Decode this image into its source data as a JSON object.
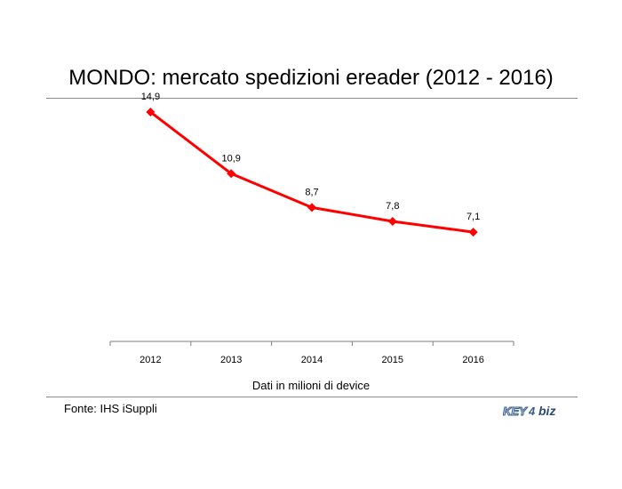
{
  "chart_data": {
    "type": "line",
    "title": "MONDO: mercato spedizioni ereader (2012 - 2016)",
    "xlabel": "Dati in milioni di device",
    "ylabel": "",
    "categories": [
      "2012",
      "2013",
      "2014",
      "2015",
      "2016"
    ],
    "series": [
      {
        "values": [
          14.9,
          10.9,
          8.7,
          7.8,
          7.1
        ],
        "labels": [
          "14,9",
          "10,9",
          "8,7",
          "7,8",
          "7,1"
        ]
      }
    ],
    "ylim": [
      0,
      16
    ],
    "grid": false,
    "legend": "none",
    "line_color": "#ff0000"
  },
  "footer": {
    "source": "Fonte: IHS iSuppli",
    "logo": "KEY4biz"
  }
}
